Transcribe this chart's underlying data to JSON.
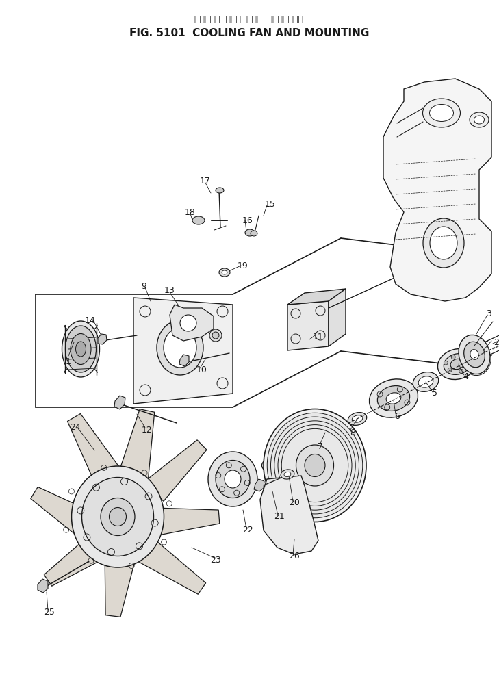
{
  "title_japanese": "クーリング  ファン  および  マウンティング",
  "title_english": "FIG. 5101  COOLING FAN AND MOUNTING",
  "bg_color": "#ffffff",
  "line_color": "#1a1a1a",
  "fig_width": 7.29,
  "fig_height": 10.14,
  "dpi": 100
}
